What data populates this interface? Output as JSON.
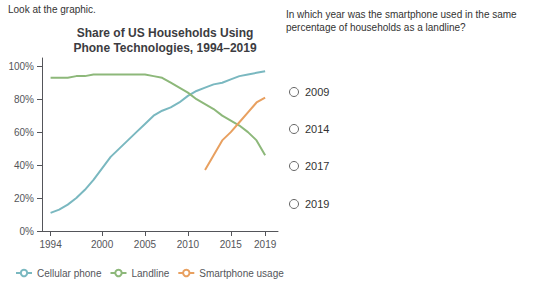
{
  "chart_data": {
    "type": "line",
    "title": "Share of US Households Using\nPhone Technologies, 1994–2019",
    "series": [
      {
        "name": "Cellular phone",
        "color": "#7ab8c0",
        "x": [
          1994,
          1995,
          1996,
          1997,
          1998,
          1999,
          2000,
          2001,
          2002,
          2003,
          2004,
          2005,
          2006,
          2007,
          2008,
          2009,
          2010,
          2011,
          2012,
          2013,
          2014,
          2015,
          2016,
          2017,
          2018,
          2019
        ],
        "values": [
          11,
          13,
          16,
          20,
          25,
          31,
          38,
          45,
          50,
          55,
          60,
          65,
          70,
          73,
          75,
          78,
          82,
          85,
          87,
          89,
          90,
          92,
          94,
          95,
          96,
          97
        ]
      },
      {
        "name": "Landline",
        "color": "#8db87a",
        "x": [
          1994,
          1995,
          1996,
          1997,
          1998,
          1999,
          2000,
          2001,
          2002,
          2003,
          2004,
          2005,
          2006,
          2007,
          2008,
          2009,
          2010,
          2011,
          2012,
          2013,
          2014,
          2015,
          2016,
          2017,
          2018,
          2019
        ],
        "values": [
          93,
          93,
          93,
          94,
          94,
          95,
          95,
          95,
          95,
          95,
          95,
          95,
          94,
          93,
          90,
          87,
          84,
          80,
          77,
          74,
          70,
          67,
          64,
          60,
          55,
          46
        ]
      },
      {
        "name": "Smartphone usage",
        "color": "#e8a060",
        "x": [
          2012,
          2013,
          2014,
          2015,
          2016,
          2017,
          2018,
          2019
        ],
        "values": [
          37,
          46,
          55,
          60,
          66,
          72,
          78,
          81
        ]
      }
    ],
    "xlim": [
      1993,
      2020.5
    ],
    "xticks": [
      1994,
      2000,
      2005,
      2010,
      2015,
      2019
    ],
    "ylim": [
      0,
      105
    ],
    "yticks": [
      {
        "value": 0,
        "label": "0%"
      },
      {
        "value": 20,
        "label": "20%"
      },
      {
        "value": 40,
        "label": "40%"
      },
      {
        "value": 60,
        "label": "60%"
      },
      {
        "value": 80,
        "label": "80%"
      },
      {
        "value": 100,
        "label": "100%"
      }
    ],
    "grid": false,
    "legend": "bottom",
    "annotations": [
      "Look at the graphic.",
      "In which year was the smartphone used in the same\npercentage of households as a landline?",
      "2009",
      "2014",
      "2017",
      "2019"
    ]
  }
}
